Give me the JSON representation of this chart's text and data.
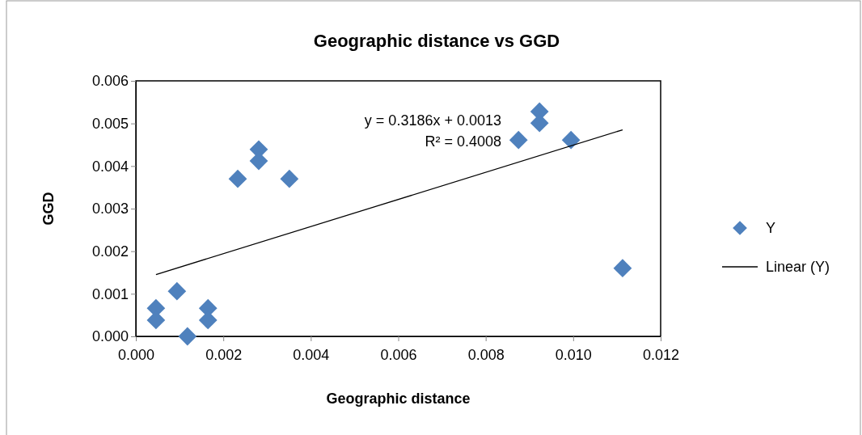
{
  "chart_data": {
    "type": "scatter",
    "title": "Geographic distance vs GGD",
    "xlabel": "Geographic distance",
    "ylabel": "GGD",
    "xlim": [
      0,
      0.012
    ],
    "xticks": [
      {
        "value": 0,
        "label": "0.000"
      },
      {
        "value": 0.002,
        "label": "0.002"
      },
      {
        "value": 0.004,
        "label": "0.004"
      },
      {
        "value": 0.006,
        "label": "0.006"
      },
      {
        "value": 0.008,
        "label": "0.008"
      },
      {
        "value": 0.01,
        "label": "0.010"
      },
      {
        "value": 0.012,
        "label": "0.012"
      }
    ],
    "ylim": [
      0,
      0.006
    ],
    "yticks": [
      {
        "value": 0,
        "label": "0.000"
      },
      {
        "value": 0.001,
        "label": "0.001"
      },
      {
        "value": 0.002,
        "label": "0.002"
      },
      {
        "value": 0.003,
        "label": "0.003"
      },
      {
        "value": 0.004,
        "label": "0.004"
      },
      {
        "value": 0.005,
        "label": "0.005"
      },
      {
        "value": 0.006,
        "label": "0.006"
      }
    ],
    "grid": false,
    "legend": "right",
    "annotations": [
      "y = 0.3186x + 0.0013",
      "R² = 0.4008"
    ],
    "series": [
      {
        "name": "Y",
        "marker": "diamond",
        "color": "#4f81bd",
        "x": [
          0.00046,
          0.00046,
          0.00094,
          0.00118,
          0.00165,
          0.00165,
          0.00233,
          0.00281,
          0.00281,
          0.00351,
          0.00875,
          0.00923,
          0.00923,
          0.00995,
          0.01113
        ],
        "values": [
          0.00066,
          0.00038,
          0.00106,
          0.0,
          0.00066,
          0.00038,
          0.0037,
          0.00439,
          0.00412,
          0.0037,
          0.00461,
          0.00528,
          0.00501,
          0.00461,
          0.0016
        ]
      },
      {
        "name": "Linear (Y)",
        "type": "line",
        "color": "#000000",
        "line_style": "solid",
        "x": [
          0.00046,
          0.01113
        ],
        "values": [
          0.00145,
          0.00485
        ]
      }
    ]
  }
}
